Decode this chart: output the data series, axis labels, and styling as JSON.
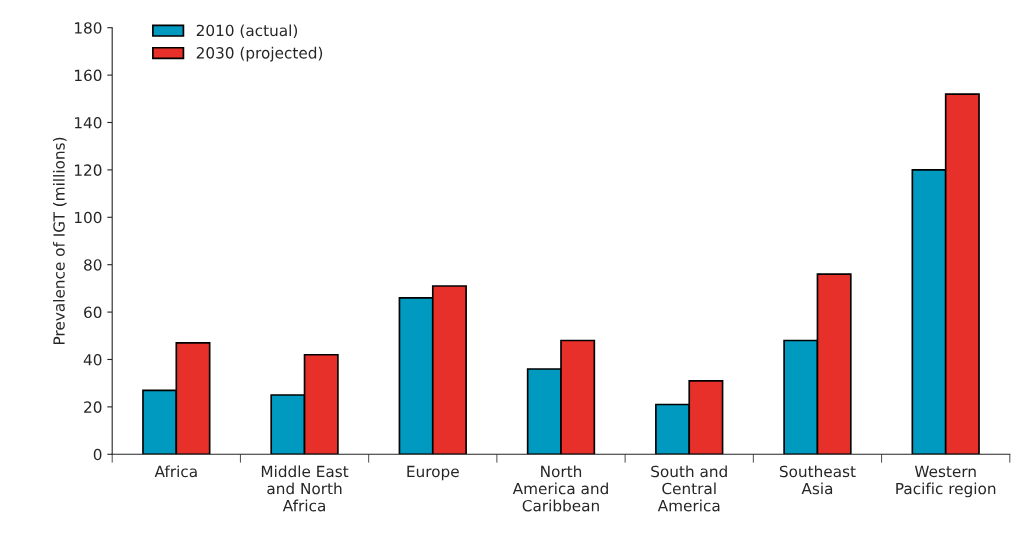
{
  "chart_data": {
    "type": "bar",
    "categories": [
      "Africa",
      "Middle East\nand North\nAfrica",
      "Europe",
      "North\nAmerica and\nCaribbean",
      "South and\nCentral\nAmerica",
      "Southeast\nAsia",
      "Western\nPacific region"
    ],
    "series": [
      {
        "name": "2010 (actual)",
        "color": "#0099bf",
        "values": [
          27,
          25,
          66,
          36,
          21,
          48,
          120
        ]
      },
      {
        "name": "2030 (projected)",
        "color": "#e8302a",
        "values": [
          47,
          42,
          71,
          48,
          31,
          76,
          152
        ]
      }
    ],
    "ylabel": "Prevalence of IGT (millions)",
    "ylim": [
      0,
      180
    ],
    "yticks": [
      0,
      20,
      40,
      60,
      80,
      100,
      120,
      140,
      160,
      180
    ],
    "grid": false,
    "legend": "top left"
  }
}
